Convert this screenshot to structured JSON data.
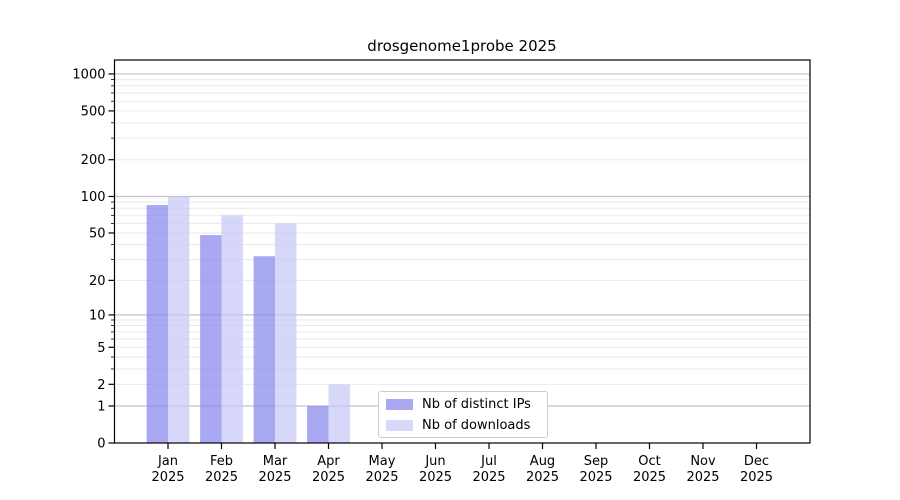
{
  "chart_data": {
    "type": "bar",
    "title": "drosgenome1probe 2025",
    "categories": [
      "Jan",
      "Feb",
      "Mar",
      "Apr",
      "May",
      "Jun",
      "Jul",
      "Aug",
      "Sep",
      "Oct",
      "Nov",
      "Dec"
    ],
    "year_label": "2025",
    "series": [
      {
        "name": "Nb of distinct IPs",
        "color": "#8888ee",
        "legend_color": "#a9a9f2",
        "values": [
          85,
          48,
          32,
          1,
          0,
          0,
          0,
          0,
          0,
          0,
          0,
          0
        ]
      },
      {
        "name": "Nb of downloads",
        "color": "#c8c8f8",
        "legend_color": "#d8d8fa",
        "values": [
          100,
          70,
          60,
          2,
          0,
          0,
          0,
          0,
          0,
          0,
          0,
          0
        ]
      }
    ],
    "xlabel": "",
    "ylabel": "",
    "yticks": [
      0,
      1,
      2,
      5,
      10,
      20,
      50,
      100,
      200,
      500,
      1000
    ],
    "major_gridline_values": [
      1,
      10,
      100,
      1000
    ],
    "minor_gridline_values": [
      2,
      3,
      4,
      5,
      6,
      7,
      8,
      9,
      20,
      30,
      40,
      50,
      60,
      70,
      80,
      90,
      200,
      300,
      400,
      500,
      600,
      700,
      800,
      900
    ],
    "scale": "log10(1+x)",
    "ylim": [
      0,
      1300
    ],
    "grid": true,
    "legend_position": "inside-bottom-center",
    "colors": {
      "background": "#ffffff",
      "spine": "#000000",
      "major_grid": "#c3c3c3",
      "minor_grid": "#eaeaea",
      "text": "#000000",
      "legend_border": "#cccccc"
    }
  }
}
